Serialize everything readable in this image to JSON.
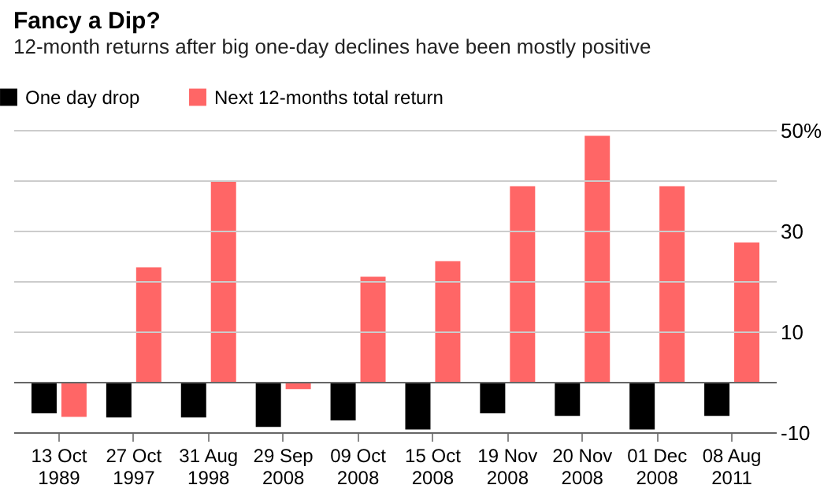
{
  "chart_data": {
    "type": "bar",
    "title": "Fancy a Dip?",
    "subtitle": "12-month returns after big one-day declines have been mostly positive",
    "categories": [
      "13 Oct\n1989",
      "27 Oct\n1997",
      "31 Aug\n1998",
      "29 Sep\n2008",
      "09 Oct\n2008",
      "15 Oct\n2008",
      "19 Nov\n2008",
      "20 Nov\n2008",
      "01 Dec\n2008",
      "08 Aug\n2011"
    ],
    "series": [
      {
        "name": "One day drop",
        "color": "#000000",
        "values": [
          -6.1,
          -6.9,
          -6.9,
          -8.8,
          -7.5,
          -9.3,
          -6.1,
          -6.6,
          -9.3,
          -6.6
        ]
      },
      {
        "name": "Next 12-months total return",
        "color": "#ff6666",
        "values": [
          -6.8,
          22.9,
          40.0,
          -1.3,
          21.0,
          24.1,
          39.0,
          49.0,
          39.0,
          27.8
        ]
      }
    ],
    "ylim": [
      -10,
      50
    ],
    "yticks": [
      -10,
      {
        "value": 0,
        "label": null
      },
      10,
      {
        "value": 20,
        "label": null
      },
      30,
      {
        "value": 40,
        "label": null
      },
      {
        "value": 50,
        "label": "50%"
      }
    ],
    "grid": "y",
    "legend": "top left"
  }
}
